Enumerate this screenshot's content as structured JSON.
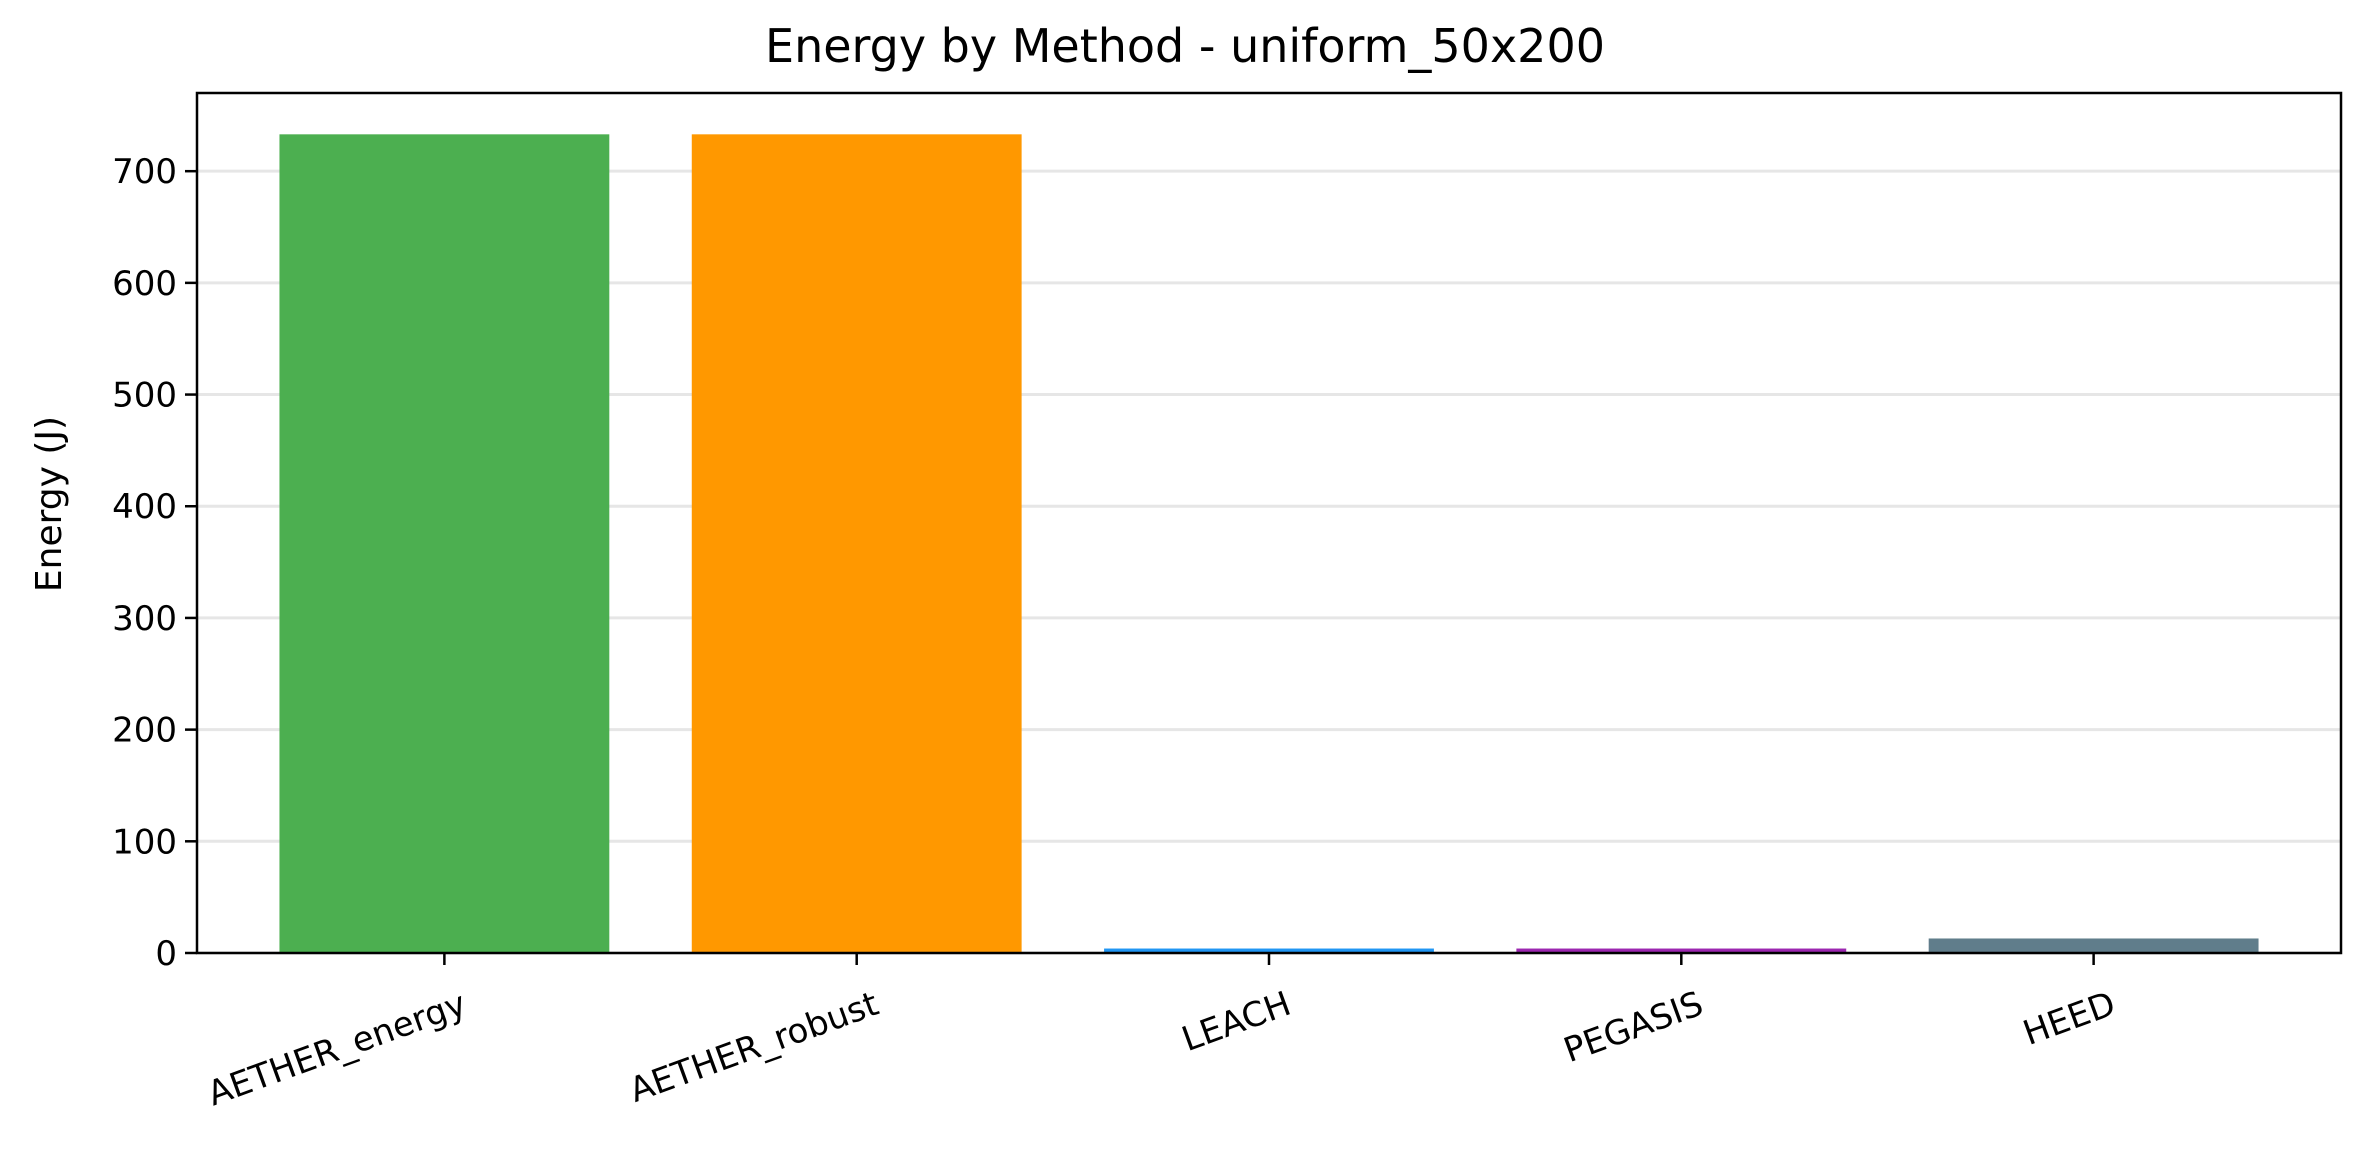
{
  "chart_data": {
    "type": "bar",
    "title": "Energy by Method - uniform_50x200",
    "xlabel": "",
    "ylabel": "Energy (J)",
    "categories": [
      "AETHER_energy",
      "AETHER_robust",
      "LEACH",
      "PEGASIS",
      "HEED"
    ],
    "values": [
      733,
      733,
      4,
      4,
      13
    ],
    "colors": [
      "#4caf50",
      "#ff9800",
      "#2196f3",
      "#9c27b0",
      "#607d8b"
    ],
    "ylim": [
      0,
      770
    ],
    "yticks": [
      0,
      100,
      200,
      300,
      400,
      500,
      600,
      700
    ],
    "grid": "horizontal",
    "legend": "none"
  }
}
